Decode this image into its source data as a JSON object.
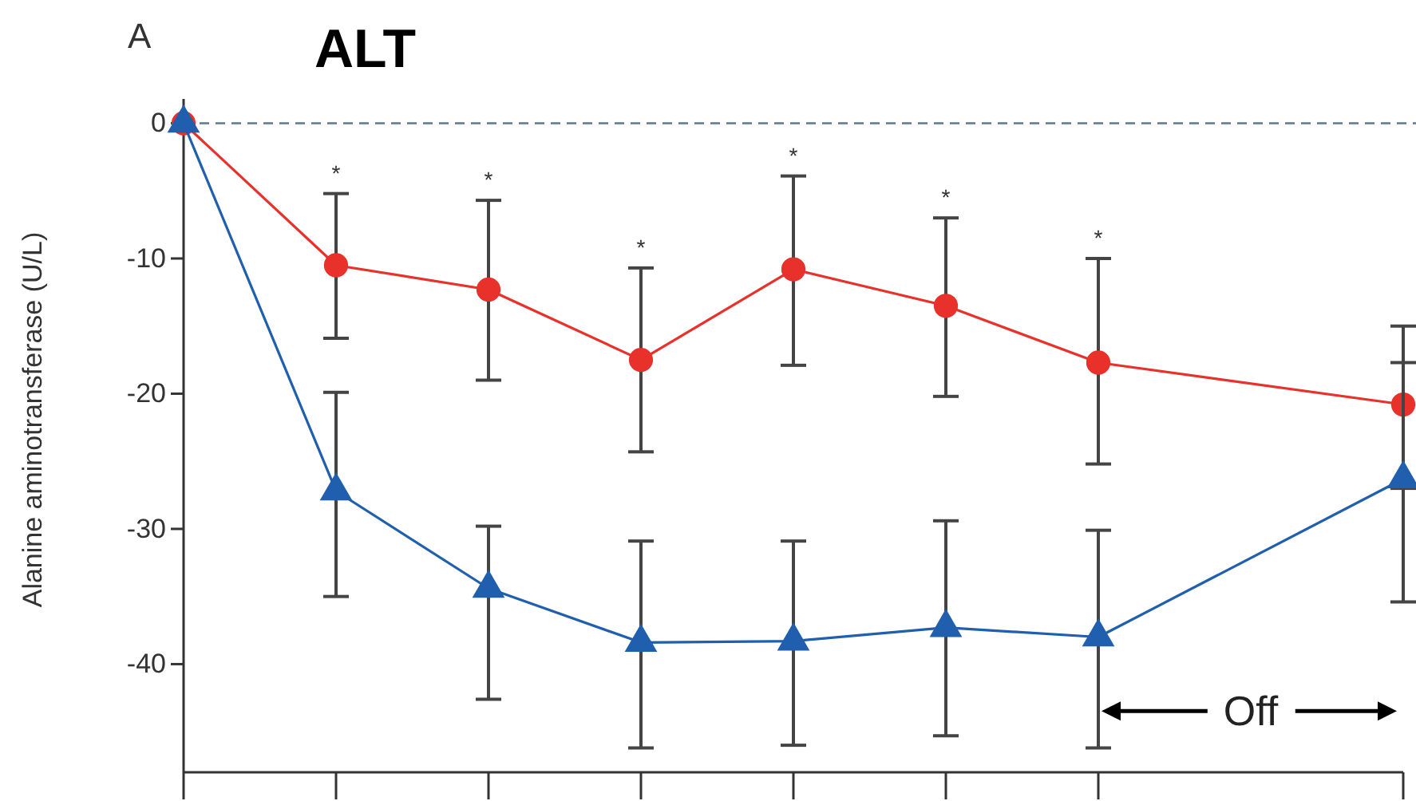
{
  "chart_data": {
    "type": "line",
    "title": "ALT",
    "ylabel": "Alanine aminotransferase (U/L)",
    "categories": [
      null,
      null,
      null,
      null,
      null,
      null,
      null,
      null,
      null
    ],
    "ylim": [
      -48,
      1.8
    ],
    "yticks": [
      0,
      -10,
      -20,
      -30,
      -40
    ],
    "grid": false,
    "series": [
      {
        "color": "#e8312a",
        "marker": "circle",
        "values": [
          0,
          -10.5,
          -12.3,
          -17.5,
          -10.8,
          -13.5,
          -17.7,
          null,
          -20.8
        ],
        "errors": [
          null,
          [
            -15.9,
            -5.2
          ],
          [
            -19.0,
            -5.7
          ],
          [
            -24.3,
            -10.7
          ],
          [
            -17.9,
            -3.9
          ],
          [
            -20.2,
            -7.0
          ],
          [
            -25.2,
            -10.0
          ],
          null,
          [
            -27,
            -15.0
          ]
        ]
      },
      {
        "color": "#1f5fae",
        "marker": "triangle",
        "values": [
          0,
          -27.2,
          -34.4,
          -38.4,
          -38.3,
          -37.3,
          -38.0,
          null,
          -26.3
        ],
        "errors": [
          null,
          [
            -35.0,
            -19.9
          ],
          [
            -42.6,
            -29.8
          ],
          [
            -46.2,
            -30.9
          ],
          [
            -46.0,
            -30.9
          ],
          [
            -45.3,
            -29.4
          ],
          [
            -46.2,
            -30.1
          ],
          null,
          [
            -35.4,
            -17.7
          ]
        ]
      }
    ],
    "ref_lines": [
      {
        "axis": "y",
        "value": 0,
        "color": "#5b7894",
        "line_style": "dashed"
      }
    ],
    "annotations": [
      "A",
      "*",
      "*",
      "*",
      "*",
      "*",
      "*",
      "Off"
    ]
  }
}
